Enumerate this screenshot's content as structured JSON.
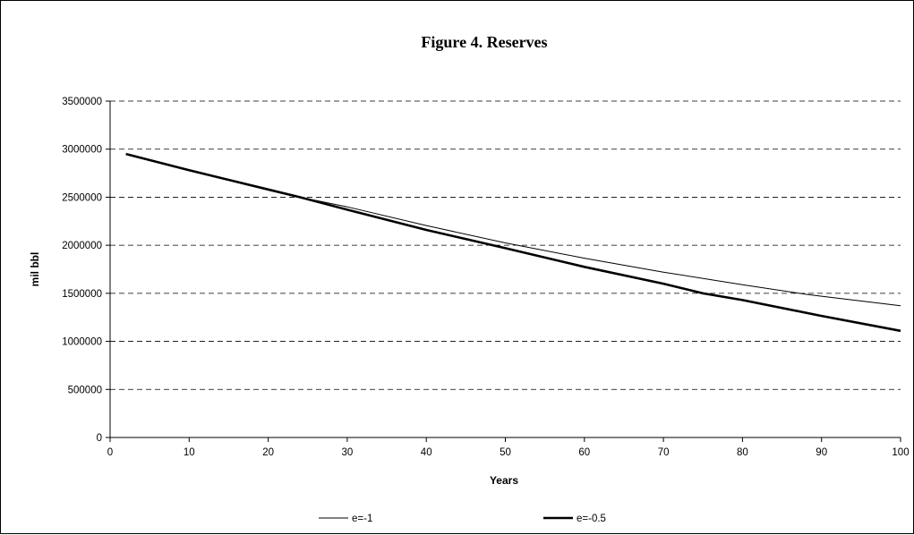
{
  "chart_data": {
    "type": "line",
    "title": "Figure 4. Reserves",
    "xlabel": "Years",
    "ylabel": "mil bbl",
    "xlim": [
      0,
      100
    ],
    "ylim": [
      0,
      3500000
    ],
    "x_ticks": [
      0,
      10,
      20,
      30,
      40,
      50,
      60,
      70,
      80,
      90,
      100
    ],
    "y_ticks": [
      0,
      500000,
      1000000,
      1500000,
      2000000,
      2500000,
      3000000,
      3500000
    ],
    "grid": "horizontal dashed",
    "legend_position": "bottom",
    "series": [
      {
        "name": "e=-1",
        "style": "thin",
        "color": "#000000",
        "x": [
          2,
          10,
          20,
          24,
          30,
          40,
          50,
          60,
          70,
          80,
          88,
          90,
          100
        ],
        "y": [
          2950000,
          2780000,
          2580000,
          2500000,
          2400000,
          2205000,
          2025000,
          1865000,
          1720000,
          1590000,
          1490000,
          1470000,
          1370000
        ]
      },
      {
        "name": "e=-0.5",
        "style": "thick",
        "color": "#000000",
        "x": [
          2,
          10,
          20,
          24,
          30,
          40,
          50,
          60,
          70,
          75,
          80,
          90,
          100
        ],
        "y": [
          2950000,
          2780000,
          2580000,
          2500000,
          2370000,
          2160000,
          1970000,
          1775000,
          1600000,
          1500000,
          1430000,
          1265000,
          1110000
        ]
      }
    ]
  }
}
